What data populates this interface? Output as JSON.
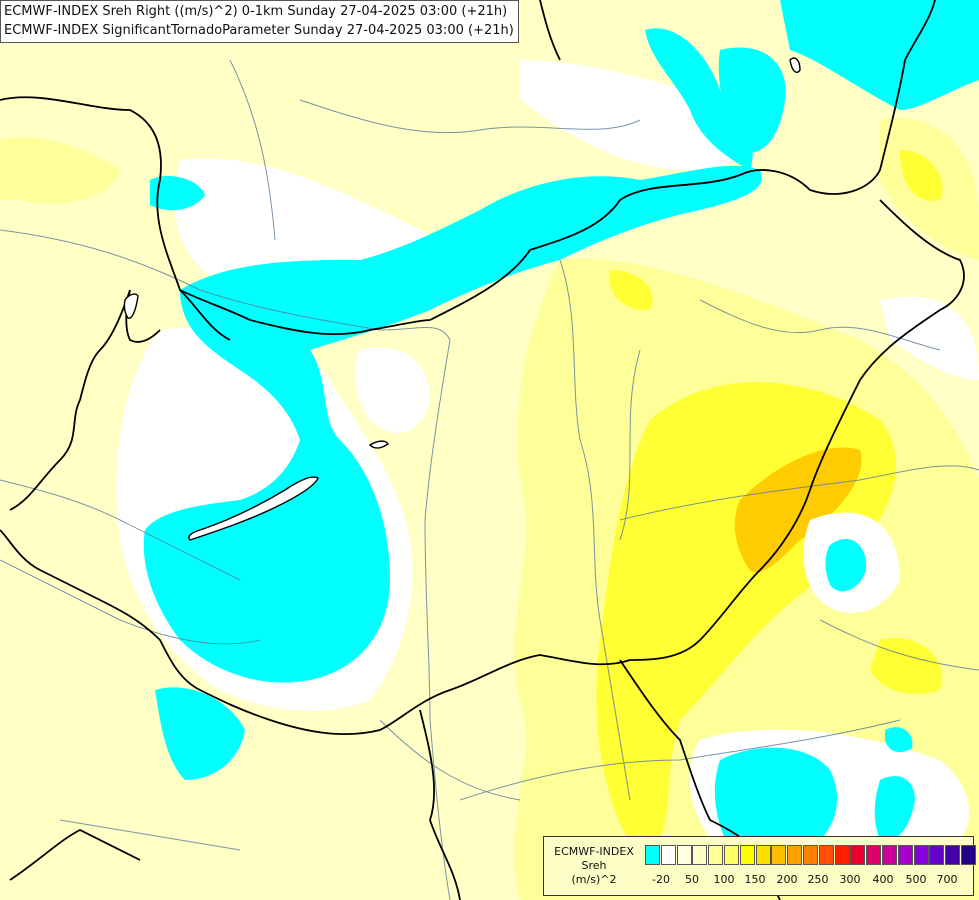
{
  "map": {
    "title_line1": "ECMWF-INDEX Sreh Right ((m/s)^2) 0-1km Sunday 27-04-2025 03:00 (+21h)",
    "title_line2": "ECMWF-INDEX SignificantTornadoParameter Sunday 27-04-2025 03:00 (+21h)",
    "colors": {
      "cyan": "#00ffff",
      "white": "#ffffff",
      "pale_yellow": "#ffffc6",
      "light_yellow": "#ffff99",
      "yellow": "#ffff33",
      "orange": "#ffcc00",
      "border": "#000000",
      "river": "#5a7a9a"
    }
  },
  "legend": {
    "title_line1": "ECMWF-INDEX",
    "title_line2": "Sreh",
    "title_line3": "(m/s)^2",
    "swatch_colors": [
      "#00ffff",
      "#ffffff",
      "#ffffe0",
      "#ffffc6",
      "#ffff99",
      "#ffff66",
      "#ffff00",
      "#ffdf00",
      "#ffbf00",
      "#ff9f00",
      "#ff7f00",
      "#ff4f00",
      "#ff1f00",
      "#ee0033",
      "#dd0066",
      "#cc0099",
      "#aa00cc",
      "#8800dd",
      "#6600cc",
      "#4400aa",
      "#220088"
    ],
    "ticks": [
      "-20",
      "50",
      "100",
      "150",
      "200",
      "250",
      "300",
      "400",
      "500",
      "700"
    ]
  }
}
